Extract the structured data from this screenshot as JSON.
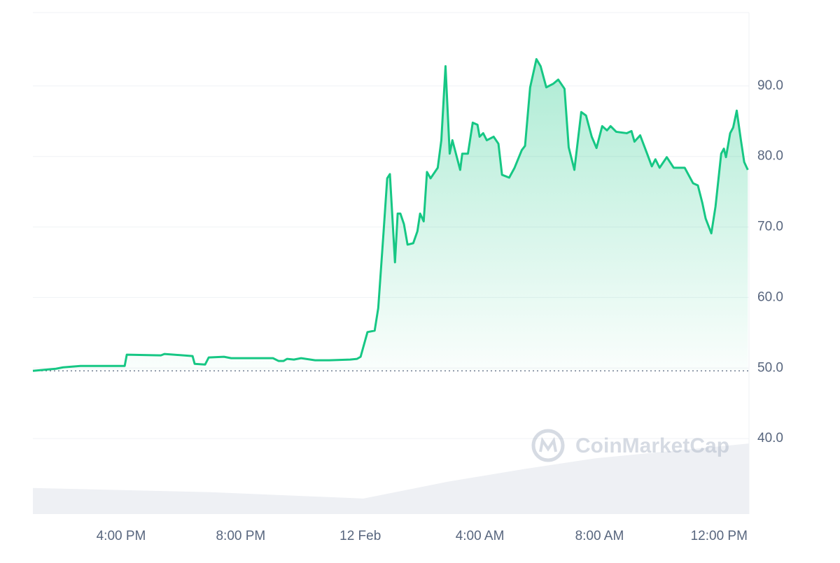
{
  "chart_data": {
    "type": "line",
    "watermark": "CoinMarketCap",
    "xlim": [
      13.05,
      37.0
    ],
    "xticks": [
      {
        "value": 16,
        "label": "4:00 PM"
      },
      {
        "value": 20,
        "label": "8:00 PM"
      },
      {
        "value": 24,
        "label": "12 Feb"
      },
      {
        "value": 28,
        "label": "4:00 AM"
      },
      {
        "value": 32,
        "label": "8:00 AM"
      },
      {
        "value": 36,
        "label": "12:00 PM"
      }
    ],
    "ylim": [
      29.3,
      100.4
    ],
    "yticks": [
      {
        "value": 40,
        "label": "40.0"
      },
      {
        "value": 50,
        "label": "50.0"
      },
      {
        "value": 60,
        "label": "60.0"
      },
      {
        "value": 70,
        "label": "70.0"
      },
      {
        "value": 80,
        "label": "80.0"
      },
      {
        "value": 90,
        "label": "90.0"
      }
    ],
    "grid": true,
    "baseline": 49.6,
    "series": [
      {
        "color": "#16c784",
        "x": [
          13.05,
          13.82,
          14.06,
          14.64,
          16.12,
          16.19,
          17.33,
          17.45,
          18.39,
          18.46,
          18.81,
          18.93,
          19.44,
          19.68,
          21.08,
          21.27,
          21.43,
          21.55,
          21.78,
          22.02,
          22.49,
          22.96,
          23.66,
          23.89,
          24.01,
          24.24,
          24.48,
          24.6,
          24.78,
          24.9,
          24.99,
          25.16,
          25.25,
          25.34,
          25.46,
          25.58,
          25.77,
          25.91,
          26.0,
          26.12,
          26.23,
          26.35,
          26.59,
          26.71,
          26.85,
          26.99,
          27.08,
          27.34,
          27.41,
          27.6,
          27.76,
          27.92,
          27.99,
          28.11,
          28.23,
          28.46,
          28.62,
          28.74,
          28.98,
          29.16,
          29.4,
          29.51,
          29.68,
          29.89,
          30.03,
          30.22,
          30.45,
          30.62,
          30.83,
          30.97,
          31.16,
          31.39,
          31.55,
          31.74,
          31.9,
          32.09,
          32.25,
          32.37,
          32.56,
          32.91,
          33.07,
          33.17,
          33.36,
          33.61,
          33.75,
          33.87,
          34.01,
          34.25,
          34.48,
          34.85,
          35.13,
          35.29,
          35.44,
          35.55,
          35.74,
          35.88,
          36.07,
          36.16,
          36.23,
          36.37,
          36.47,
          36.59,
          36.73,
          36.84,
          36.96
        ],
        "values": [
          49.6,
          49.9,
          50.1,
          50.3,
          50.3,
          51.9,
          51.8,
          52.0,
          51.7,
          50.6,
          50.5,
          51.5,
          51.6,
          51.4,
          51.4,
          51.0,
          51.0,
          51.3,
          51.2,
          51.4,
          51.1,
          51.1,
          51.2,
          51.3,
          51.6,
          55.1,
          55.3,
          58.5,
          69.4,
          76.9,
          77.5,
          65.0,
          71.9,
          71.9,
          70.4,
          67.5,
          67.7,
          69.4,
          71.9,
          70.8,
          77.8,
          76.9,
          78.4,
          82.3,
          92.8,
          80.4,
          82.3,
          78.1,
          80.4,
          80.4,
          84.8,
          84.5,
          82.8,
          83.3,
          82.3,
          82.8,
          81.8,
          77.4,
          77.0,
          78.4,
          80.9,
          81.5,
          89.8,
          93.8,
          92.8,
          89.8,
          90.3,
          90.9,
          89.6,
          81.3,
          78.1,
          86.3,
          85.8,
          82.8,
          81.2,
          84.3,
          83.7,
          84.3,
          83.5,
          83.3,
          83.6,
          82.1,
          83.0,
          80.2,
          78.6,
          79.6,
          78.4,
          79.9,
          78.4,
          78.4,
          76.2,
          75.9,
          73.4,
          71.2,
          69.1,
          72.9,
          80.4,
          81.1,
          79.9,
          83.3,
          84.1,
          86.5,
          82.3,
          79.2,
          78.1
        ]
      },
      {
        "type": "area",
        "color": "#eef0f4",
        "x": [
          13.05,
          19.0,
          24.1,
          26.94,
          29.5,
          31.85,
          37.0
        ],
        "values": [
          33.0,
          32.4,
          31.5,
          33.9,
          35.7,
          37.2,
          39.3
        ]
      }
    ]
  }
}
